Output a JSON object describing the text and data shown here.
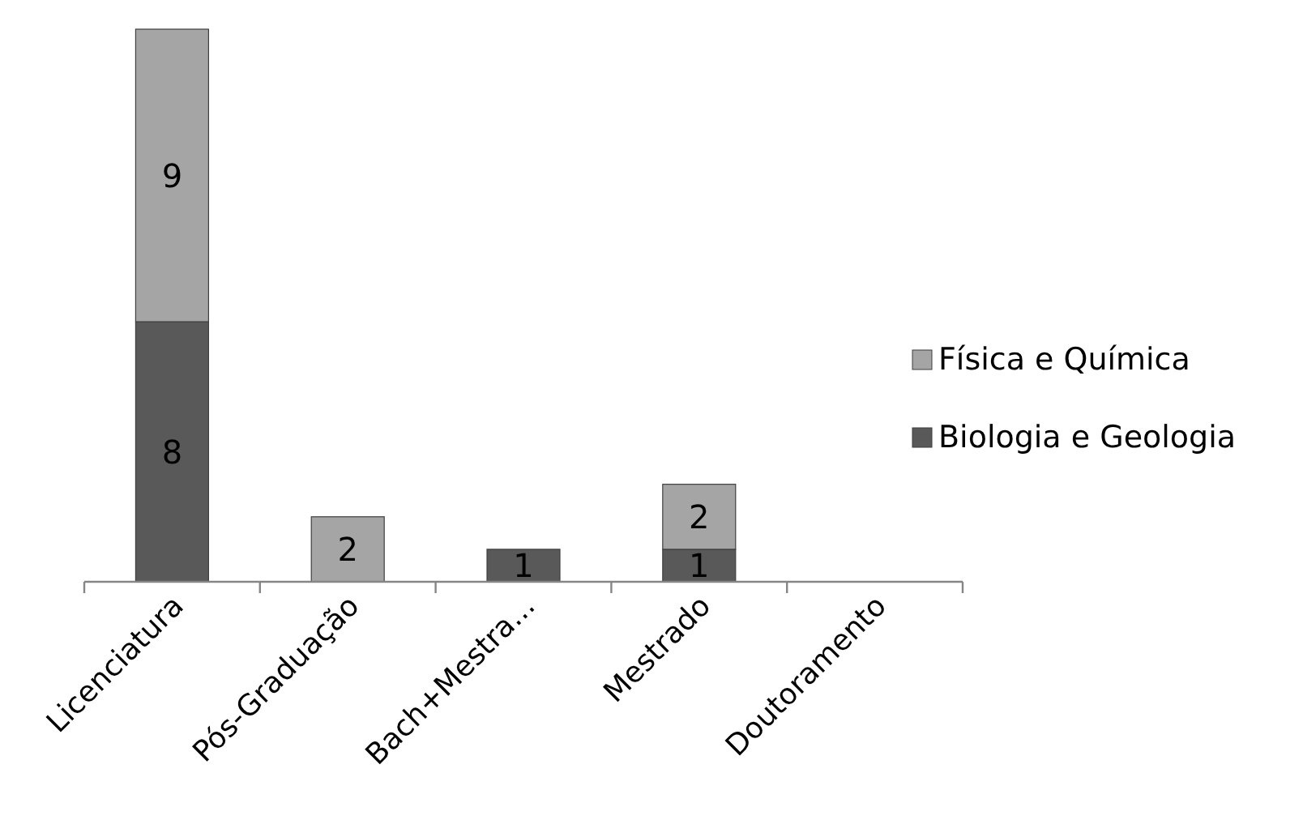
{
  "chart_data": {
    "type": "bar",
    "categories": [
      "Licenciatura",
      "Pós-Graduação",
      "Bach+Mestra...",
      "Mestrado",
      "Doutoramento"
    ],
    "series": [
      {
        "name": "Biologia e Geologia",
        "color": "#595959",
        "values": [
          8,
          null,
          1,
          1,
          null
        ]
      },
      {
        "name": "Física e Química",
        "color": "#a5a5a5",
        "values": [
          9,
          2,
          null,
          2,
          null
        ]
      }
    ],
    "stacked": true,
    "data_labels": true,
    "legend": "right"
  }
}
